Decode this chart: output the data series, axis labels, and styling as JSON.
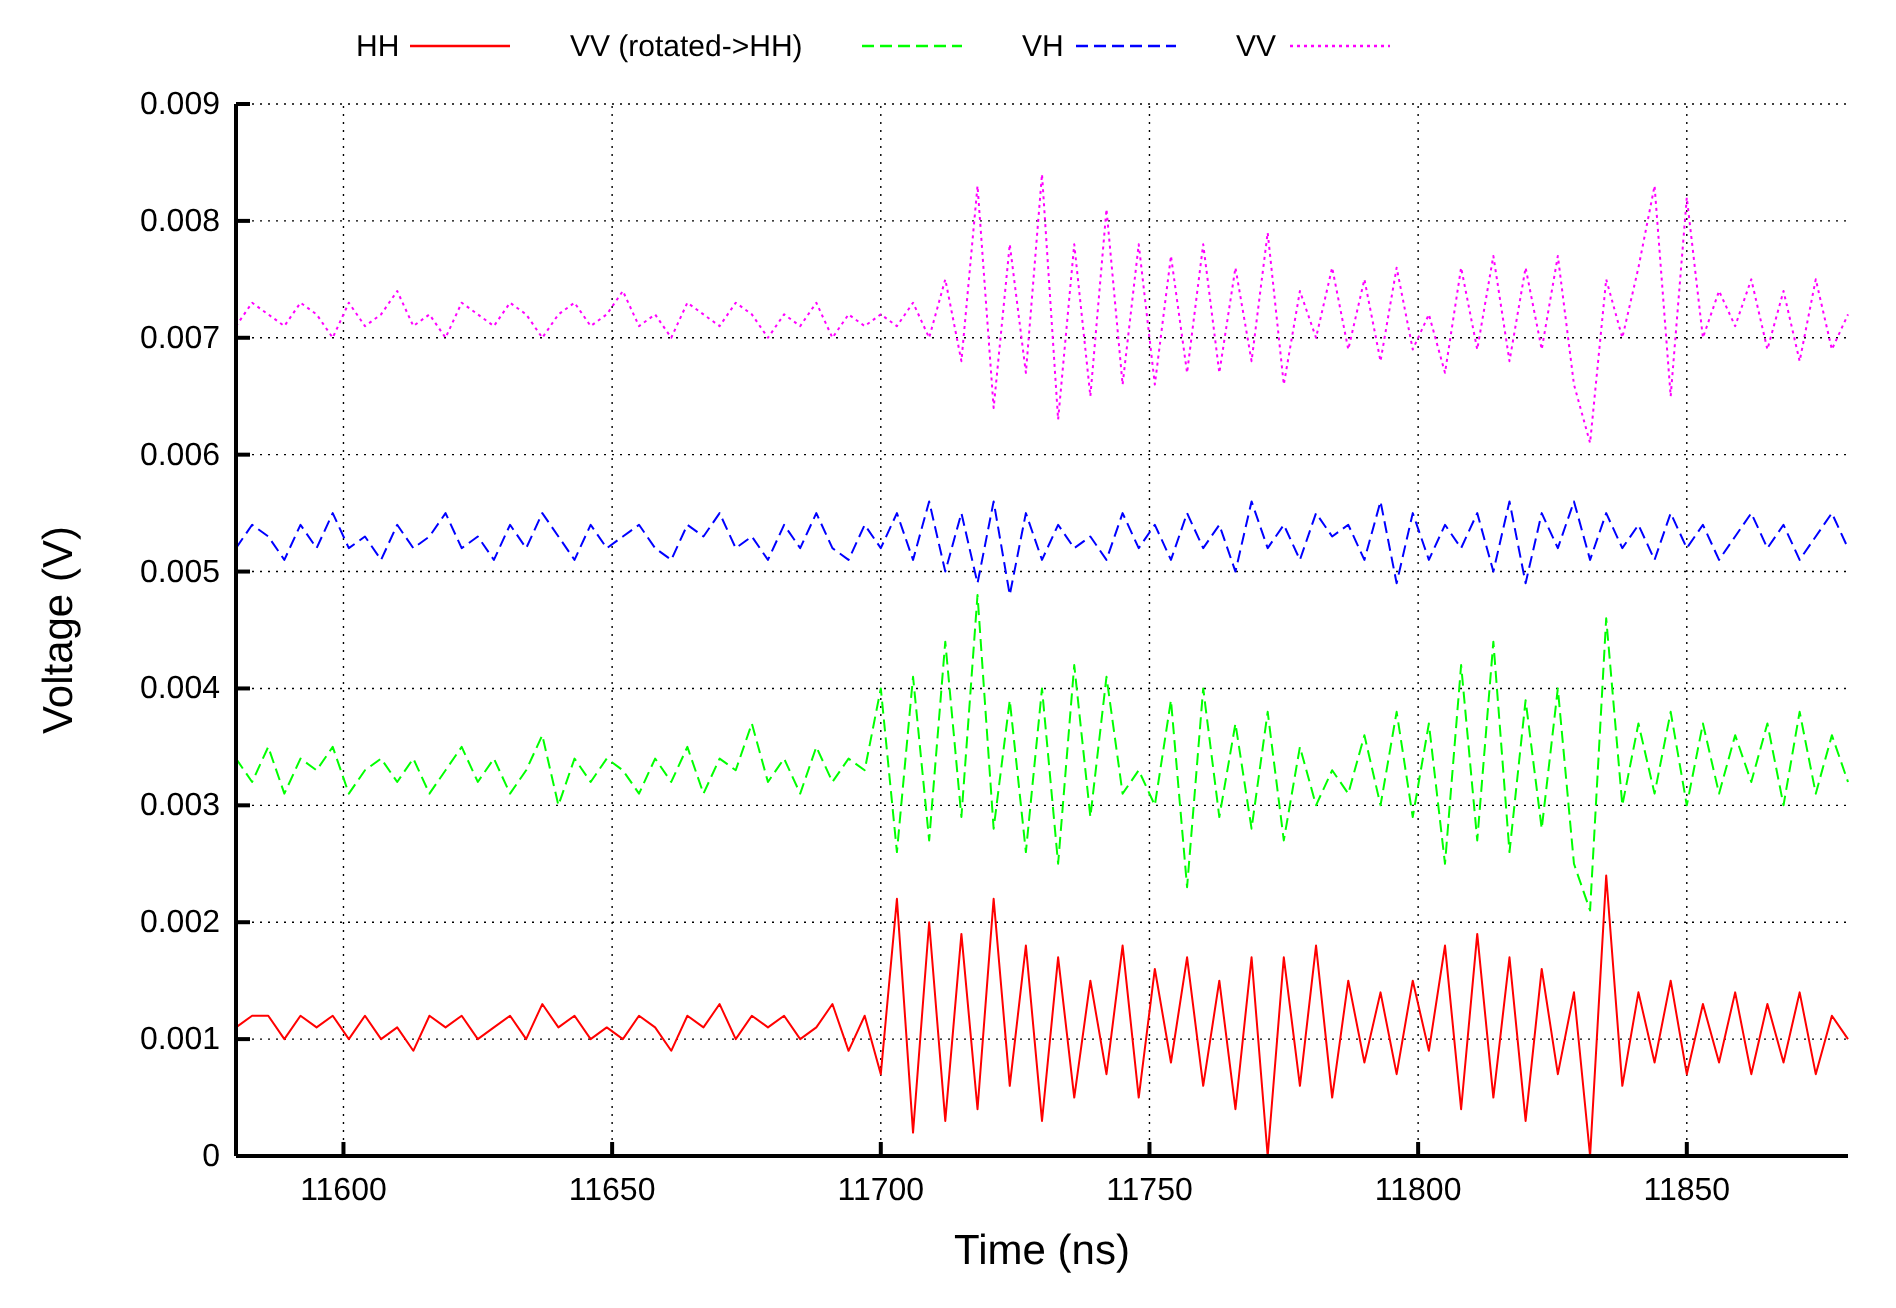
{
  "chart_data": {
    "type": "line",
    "xlabel": "Time (ns)",
    "ylabel": "Voltage (V)",
    "x": [
      11580,
      11583,
      11586,
      11589,
      11592,
      11595,
      11598,
      11601,
      11604,
      11607,
      11610,
      11613,
      11616,
      11619,
      11622,
      11625,
      11628,
      11631,
      11634,
      11637,
      11640,
      11643,
      11646,
      11649,
      11652,
      11655,
      11658,
      11661,
      11664,
      11667,
      11670,
      11673,
      11676,
      11679,
      11682,
      11685,
      11688,
      11691,
      11694,
      11697,
      11700,
      11703,
      11706,
      11709,
      11712,
      11715,
      11718,
      11721,
      11724,
      11727,
      11730,
      11733,
      11736,
      11739,
      11742,
      11745,
      11748,
      11751,
      11754,
      11757,
      11760,
      11763,
      11766,
      11769,
      11772,
      11775,
      11778,
      11781,
      11784,
      11787,
      11790,
      11793,
      11796,
      11799,
      11802,
      11805,
      11808,
      11811,
      11814,
      11817,
      11820,
      11823,
      11826,
      11829,
      11832,
      11835,
      11838,
      11841,
      11844,
      11847,
      11850,
      11853,
      11856,
      11859,
      11862,
      11865,
      11868,
      11871,
      11874,
      11877,
      11880
    ],
    "series": [
      {
        "name": "HH",
        "color": "#ff0000",
        "line_style": "solid",
        "values": [
          0.0011,
          0.0012,
          0.0012,
          0.001,
          0.0012,
          0.0011,
          0.0012,
          0.001,
          0.0012,
          0.001,
          0.0011,
          0.0009,
          0.0012,
          0.0011,
          0.0012,
          0.001,
          0.0011,
          0.0012,
          0.001,
          0.0013,
          0.0011,
          0.0012,
          0.001,
          0.0011,
          0.001,
          0.0012,
          0.0011,
          0.0009,
          0.0012,
          0.0011,
          0.0013,
          0.001,
          0.0012,
          0.0011,
          0.0012,
          0.001,
          0.0011,
          0.0013,
          0.0009,
          0.0012,
          0.0007,
          0.0022,
          0.0002,
          0.002,
          0.0003,
          0.0019,
          0.0004,
          0.0022,
          0.0006,
          0.0018,
          0.0003,
          0.0017,
          0.0005,
          0.0015,
          0.0007,
          0.0018,
          0.0005,
          0.0016,
          0.0008,
          0.0017,
          0.0006,
          0.0015,
          0.0004,
          0.0017,
          0.0,
          0.0017,
          0.0006,
          0.0018,
          0.0005,
          0.0015,
          0.0008,
          0.0014,
          0.0007,
          0.0015,
          0.0009,
          0.0018,
          0.0004,
          0.0019,
          0.0005,
          0.0017,
          0.0003,
          0.0016,
          0.0007,
          0.0014,
          0.0,
          0.0024,
          0.0006,
          0.0014,
          0.0008,
          0.0015,
          0.0007,
          0.0013,
          0.0008,
          0.0014,
          0.0007,
          0.0013,
          0.0008,
          0.0014,
          0.0007,
          0.0012,
          0.001
        ]
      },
      {
        "name": "VV (rotated->HH)",
        "color": "#00ff00",
        "line_style": "dashed",
        "values": [
          0.0034,
          0.0032,
          0.0035,
          0.0031,
          0.0034,
          0.0033,
          0.0035,
          0.0031,
          0.0033,
          0.0034,
          0.0032,
          0.0034,
          0.0031,
          0.0033,
          0.0035,
          0.0032,
          0.0034,
          0.0031,
          0.0033,
          0.0036,
          0.003,
          0.0034,
          0.0032,
          0.0034,
          0.0033,
          0.0031,
          0.0034,
          0.0032,
          0.0035,
          0.0031,
          0.0034,
          0.0033,
          0.0037,
          0.0032,
          0.0034,
          0.0031,
          0.0035,
          0.0032,
          0.0034,
          0.0033,
          0.004,
          0.0026,
          0.0041,
          0.0027,
          0.0044,
          0.0029,
          0.0048,
          0.0028,
          0.0039,
          0.0026,
          0.004,
          0.0025,
          0.0042,
          0.0029,
          0.0041,
          0.0031,
          0.0033,
          0.003,
          0.0039,
          0.0023,
          0.004,
          0.0029,
          0.0037,
          0.0028,
          0.0038,
          0.0027,
          0.0035,
          0.003,
          0.0033,
          0.0031,
          0.0036,
          0.003,
          0.0038,
          0.0029,
          0.0037,
          0.0025,
          0.0042,
          0.0027,
          0.0044,
          0.0026,
          0.0039,
          0.0028,
          0.004,
          0.0025,
          0.0021,
          0.0046,
          0.003,
          0.0037,
          0.0031,
          0.0038,
          0.003,
          0.0037,
          0.0031,
          0.0036,
          0.0032,
          0.0037,
          0.003,
          0.0038,
          0.0031,
          0.0036,
          0.0032
        ]
      },
      {
        "name": "VH",
        "color": "#0000ff",
        "line_style": "dashed",
        "values": [
          0.0052,
          0.0054,
          0.0053,
          0.0051,
          0.0054,
          0.0052,
          0.0055,
          0.0052,
          0.0053,
          0.0051,
          0.0054,
          0.0052,
          0.0053,
          0.0055,
          0.0052,
          0.0053,
          0.0051,
          0.0054,
          0.0052,
          0.0055,
          0.0053,
          0.0051,
          0.0054,
          0.0052,
          0.0053,
          0.0054,
          0.0052,
          0.0051,
          0.0054,
          0.0053,
          0.0055,
          0.0052,
          0.0053,
          0.0051,
          0.0054,
          0.0052,
          0.0055,
          0.0052,
          0.0051,
          0.0054,
          0.0052,
          0.0055,
          0.0051,
          0.0056,
          0.005,
          0.0055,
          0.0049,
          0.0056,
          0.0048,
          0.0055,
          0.0051,
          0.0054,
          0.0052,
          0.0053,
          0.0051,
          0.0055,
          0.0052,
          0.0054,
          0.0051,
          0.0055,
          0.0052,
          0.0054,
          0.005,
          0.0056,
          0.0052,
          0.0054,
          0.0051,
          0.0055,
          0.0053,
          0.0054,
          0.0051,
          0.0056,
          0.0049,
          0.0055,
          0.0051,
          0.0054,
          0.0052,
          0.0055,
          0.005,
          0.0056,
          0.0049,
          0.0055,
          0.0052,
          0.0056,
          0.0051,
          0.0055,
          0.0052,
          0.0054,
          0.0051,
          0.0055,
          0.0052,
          0.0054,
          0.0051,
          0.0053,
          0.0055,
          0.0052,
          0.0054,
          0.0051,
          0.0053,
          0.0055,
          0.0052
        ]
      },
      {
        "name": "VV",
        "color": "#ff00ff",
        "line_style": "dotted",
        "values": [
          0.0071,
          0.0073,
          0.0072,
          0.0071,
          0.0073,
          0.0072,
          0.007,
          0.0073,
          0.0071,
          0.0072,
          0.0074,
          0.0071,
          0.0072,
          0.007,
          0.0073,
          0.0072,
          0.0071,
          0.0073,
          0.0072,
          0.007,
          0.0072,
          0.0073,
          0.0071,
          0.0072,
          0.0074,
          0.0071,
          0.0072,
          0.007,
          0.0073,
          0.0072,
          0.0071,
          0.0073,
          0.0072,
          0.007,
          0.0072,
          0.0071,
          0.0073,
          0.007,
          0.0072,
          0.0071,
          0.0072,
          0.0071,
          0.0073,
          0.007,
          0.0075,
          0.0068,
          0.0083,
          0.0064,
          0.0078,
          0.0067,
          0.0084,
          0.0063,
          0.0078,
          0.0065,
          0.0081,
          0.0066,
          0.0078,
          0.0066,
          0.0077,
          0.0067,
          0.0078,
          0.0067,
          0.0076,
          0.0068,
          0.0079,
          0.0066,
          0.0074,
          0.007,
          0.0076,
          0.0069,
          0.0075,
          0.0068,
          0.0076,
          0.0069,
          0.0072,
          0.0067,
          0.0076,
          0.0069,
          0.0077,
          0.0068,
          0.0076,
          0.0069,
          0.0077,
          0.0066,
          0.0061,
          0.0075,
          0.007,
          0.0076,
          0.0083,
          0.0065,
          0.0082,
          0.007,
          0.0074,
          0.0071,
          0.0075,
          0.0069,
          0.0074,
          0.0068,
          0.0075,
          0.0069,
          0.0072
        ]
      }
    ],
    "xlim": [
      11580,
      11880
    ],
    "ylim": [
      0,
      0.009
    ],
    "xticks": [
      11600,
      11650,
      11700,
      11750,
      11800,
      11850
    ],
    "yticks": [
      0,
      0.001,
      0.002,
      0.003,
      0.004,
      0.005,
      0.006,
      0.007,
      0.008,
      0.009
    ],
    "grid": true,
    "legend": "top"
  }
}
